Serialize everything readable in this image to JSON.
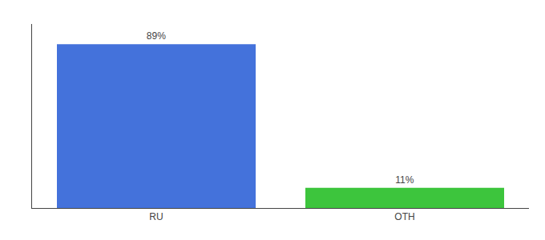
{
  "chart_data": {
    "type": "bar",
    "categories": [
      "RU",
      "OTH"
    ],
    "values": [
      89,
      11
    ],
    "value_labels": [
      "89%",
      "11%"
    ],
    "colors": [
      "#4472db",
      "#3dc53d"
    ],
    "ylim": [
      0,
      100
    ],
    "data_labels": true,
    "tick_labels": "x",
    "grid": false
  }
}
